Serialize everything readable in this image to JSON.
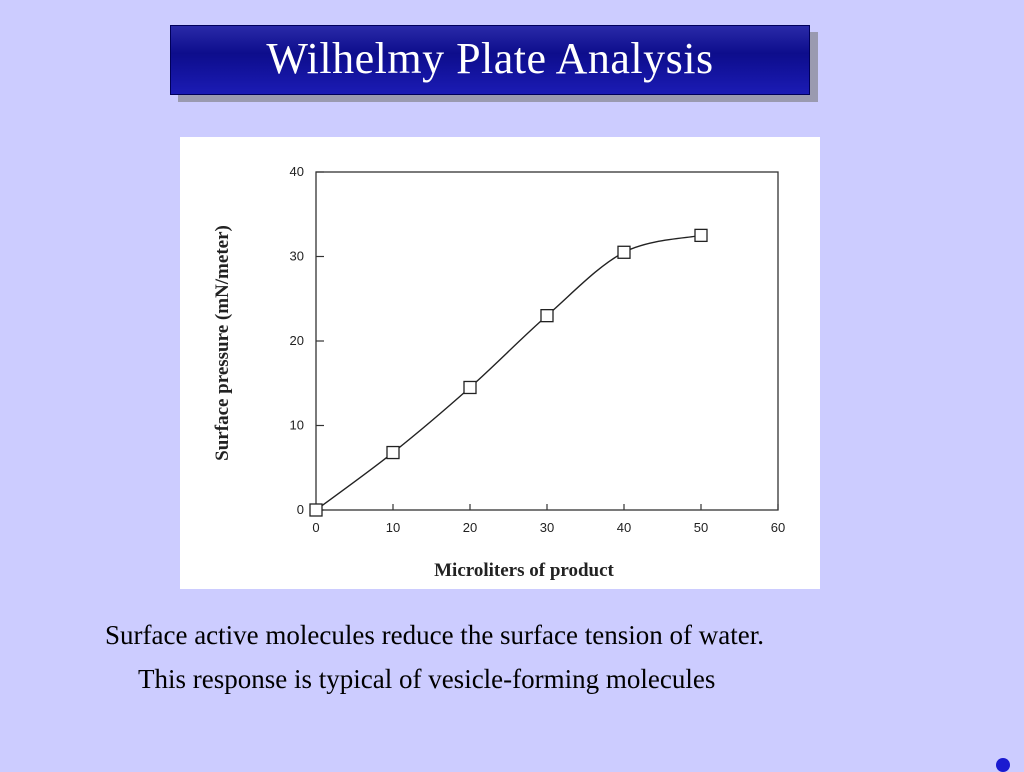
{
  "slide": {
    "title": "Wilhelmy Plate Analysis",
    "caption_line1": "Surface active molecules reduce the surface tension of water.",
    "caption_line2": "This response is typical of vesicle-forming molecules",
    "colors": {
      "background": "#ccccff",
      "title_bar": "#0d0d8c",
      "title_text": "#ffffff",
      "corner_dot": "#1a1ad0"
    }
  },
  "chart_data": {
    "type": "line",
    "title": "",
    "xlabel": "Microliters of product",
    "ylabel": "Surface pressure (mN/meter)",
    "xlim": [
      0,
      60
    ],
    "ylim": [
      0,
      40
    ],
    "xticks": [
      0,
      10,
      20,
      30,
      40,
      50,
      60
    ],
    "yticks": [
      0,
      10,
      20,
      30,
      40
    ],
    "grid": false,
    "series": [
      {
        "marker": "open-square",
        "smooth": true,
        "x": [
          0,
          10,
          20,
          30,
          40,
          50
        ],
        "y": [
          0,
          6.8,
          14.5,
          23,
          30.5,
          32.5
        ]
      }
    ]
  }
}
